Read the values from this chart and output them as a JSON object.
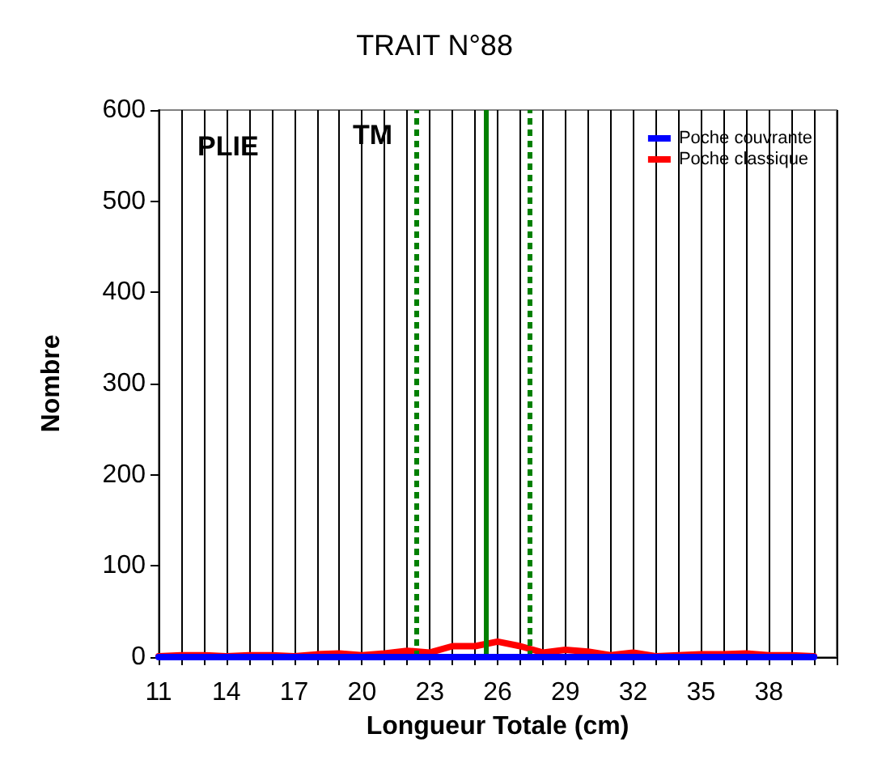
{
  "chart_data": {
    "type": "line",
    "title": "TRAIT N°88",
    "xlabel": "Longueur Totale (cm)",
    "ylabel": "Nombre",
    "x": [
      11,
      12,
      13,
      14,
      15,
      16,
      17,
      18,
      19,
      20,
      21,
      22,
      23,
      24,
      25,
      26,
      27,
      28,
      29,
      30,
      31,
      32,
      33,
      34,
      35,
      36,
      37,
      38,
      39,
      40
    ],
    "series": [
      {
        "name": "Poche couvrante",
        "color": "#0000ff",
        "values": [
          0,
          0,
          0,
          0,
          0,
          0,
          0,
          0,
          0,
          0,
          0,
          0,
          0,
          0,
          0,
          0,
          0,
          0,
          0,
          0,
          0,
          0,
          0,
          0,
          0,
          0,
          0,
          0,
          0,
          0
        ]
      },
      {
        "name": "Poche classique",
        "color": "#ff0000",
        "values": [
          1,
          2,
          2,
          1,
          2,
          2,
          1,
          3,
          4,
          2,
          4,
          7,
          5,
          12,
          12,
          17,
          12,
          5,
          8,
          6,
          2,
          5,
          1,
          2,
          3,
          3,
          4,
          2,
          2,
          1
        ]
      }
    ],
    "xlim": [
      11,
      41
    ],
    "xticks": [
      11,
      {
        "value": 12,
        "label": null
      },
      {
        "value": 13,
        "label": null
      },
      14,
      {
        "value": 15,
        "label": null
      },
      {
        "value": 16,
        "label": null
      },
      17,
      {
        "value": 18,
        "label": null
      },
      {
        "value": 19,
        "label": null
      },
      20,
      {
        "value": 21,
        "label": null
      },
      {
        "value": 22,
        "label": null
      },
      23,
      {
        "value": 24,
        "label": null
      },
      {
        "value": 25,
        "label": null
      },
      26,
      {
        "value": 27,
        "label": null
      },
      {
        "value": 28,
        "label": null
      },
      29,
      {
        "value": 30,
        "label": null
      },
      {
        "value": 31,
        "label": null
      },
      32,
      {
        "value": 33,
        "label": null
      },
      {
        "value": 34,
        "label": null
      },
      35,
      {
        "value": 36,
        "label": null
      },
      {
        "value": 37,
        "label": null
      },
      38,
      {
        "value": 39,
        "label": null
      },
      {
        "value": 40,
        "label": null
      },
      {
        "value": 41,
        "label": null
      }
    ],
    "ylim": [
      0,
      600
    ],
    "yticks": [
      0,
      100,
      200,
      300,
      400,
      500,
      600
    ],
    "ref_lines": [
      {
        "axis": "x",
        "value": 22.4,
        "color": "#008000",
        "line_style": "dotted"
      },
      {
        "axis": "x",
        "value": 25.5,
        "color": "#008000",
        "line_style": "solid"
      },
      {
        "axis": "x",
        "value": 27.4,
        "color": "#008000",
        "line_style": "dotted"
      }
    ],
    "annotations": [
      "PLIE",
      "TM"
    ],
    "grid": "x",
    "legend": "top right",
    "marker": "none",
    "line_style": "solid"
  }
}
